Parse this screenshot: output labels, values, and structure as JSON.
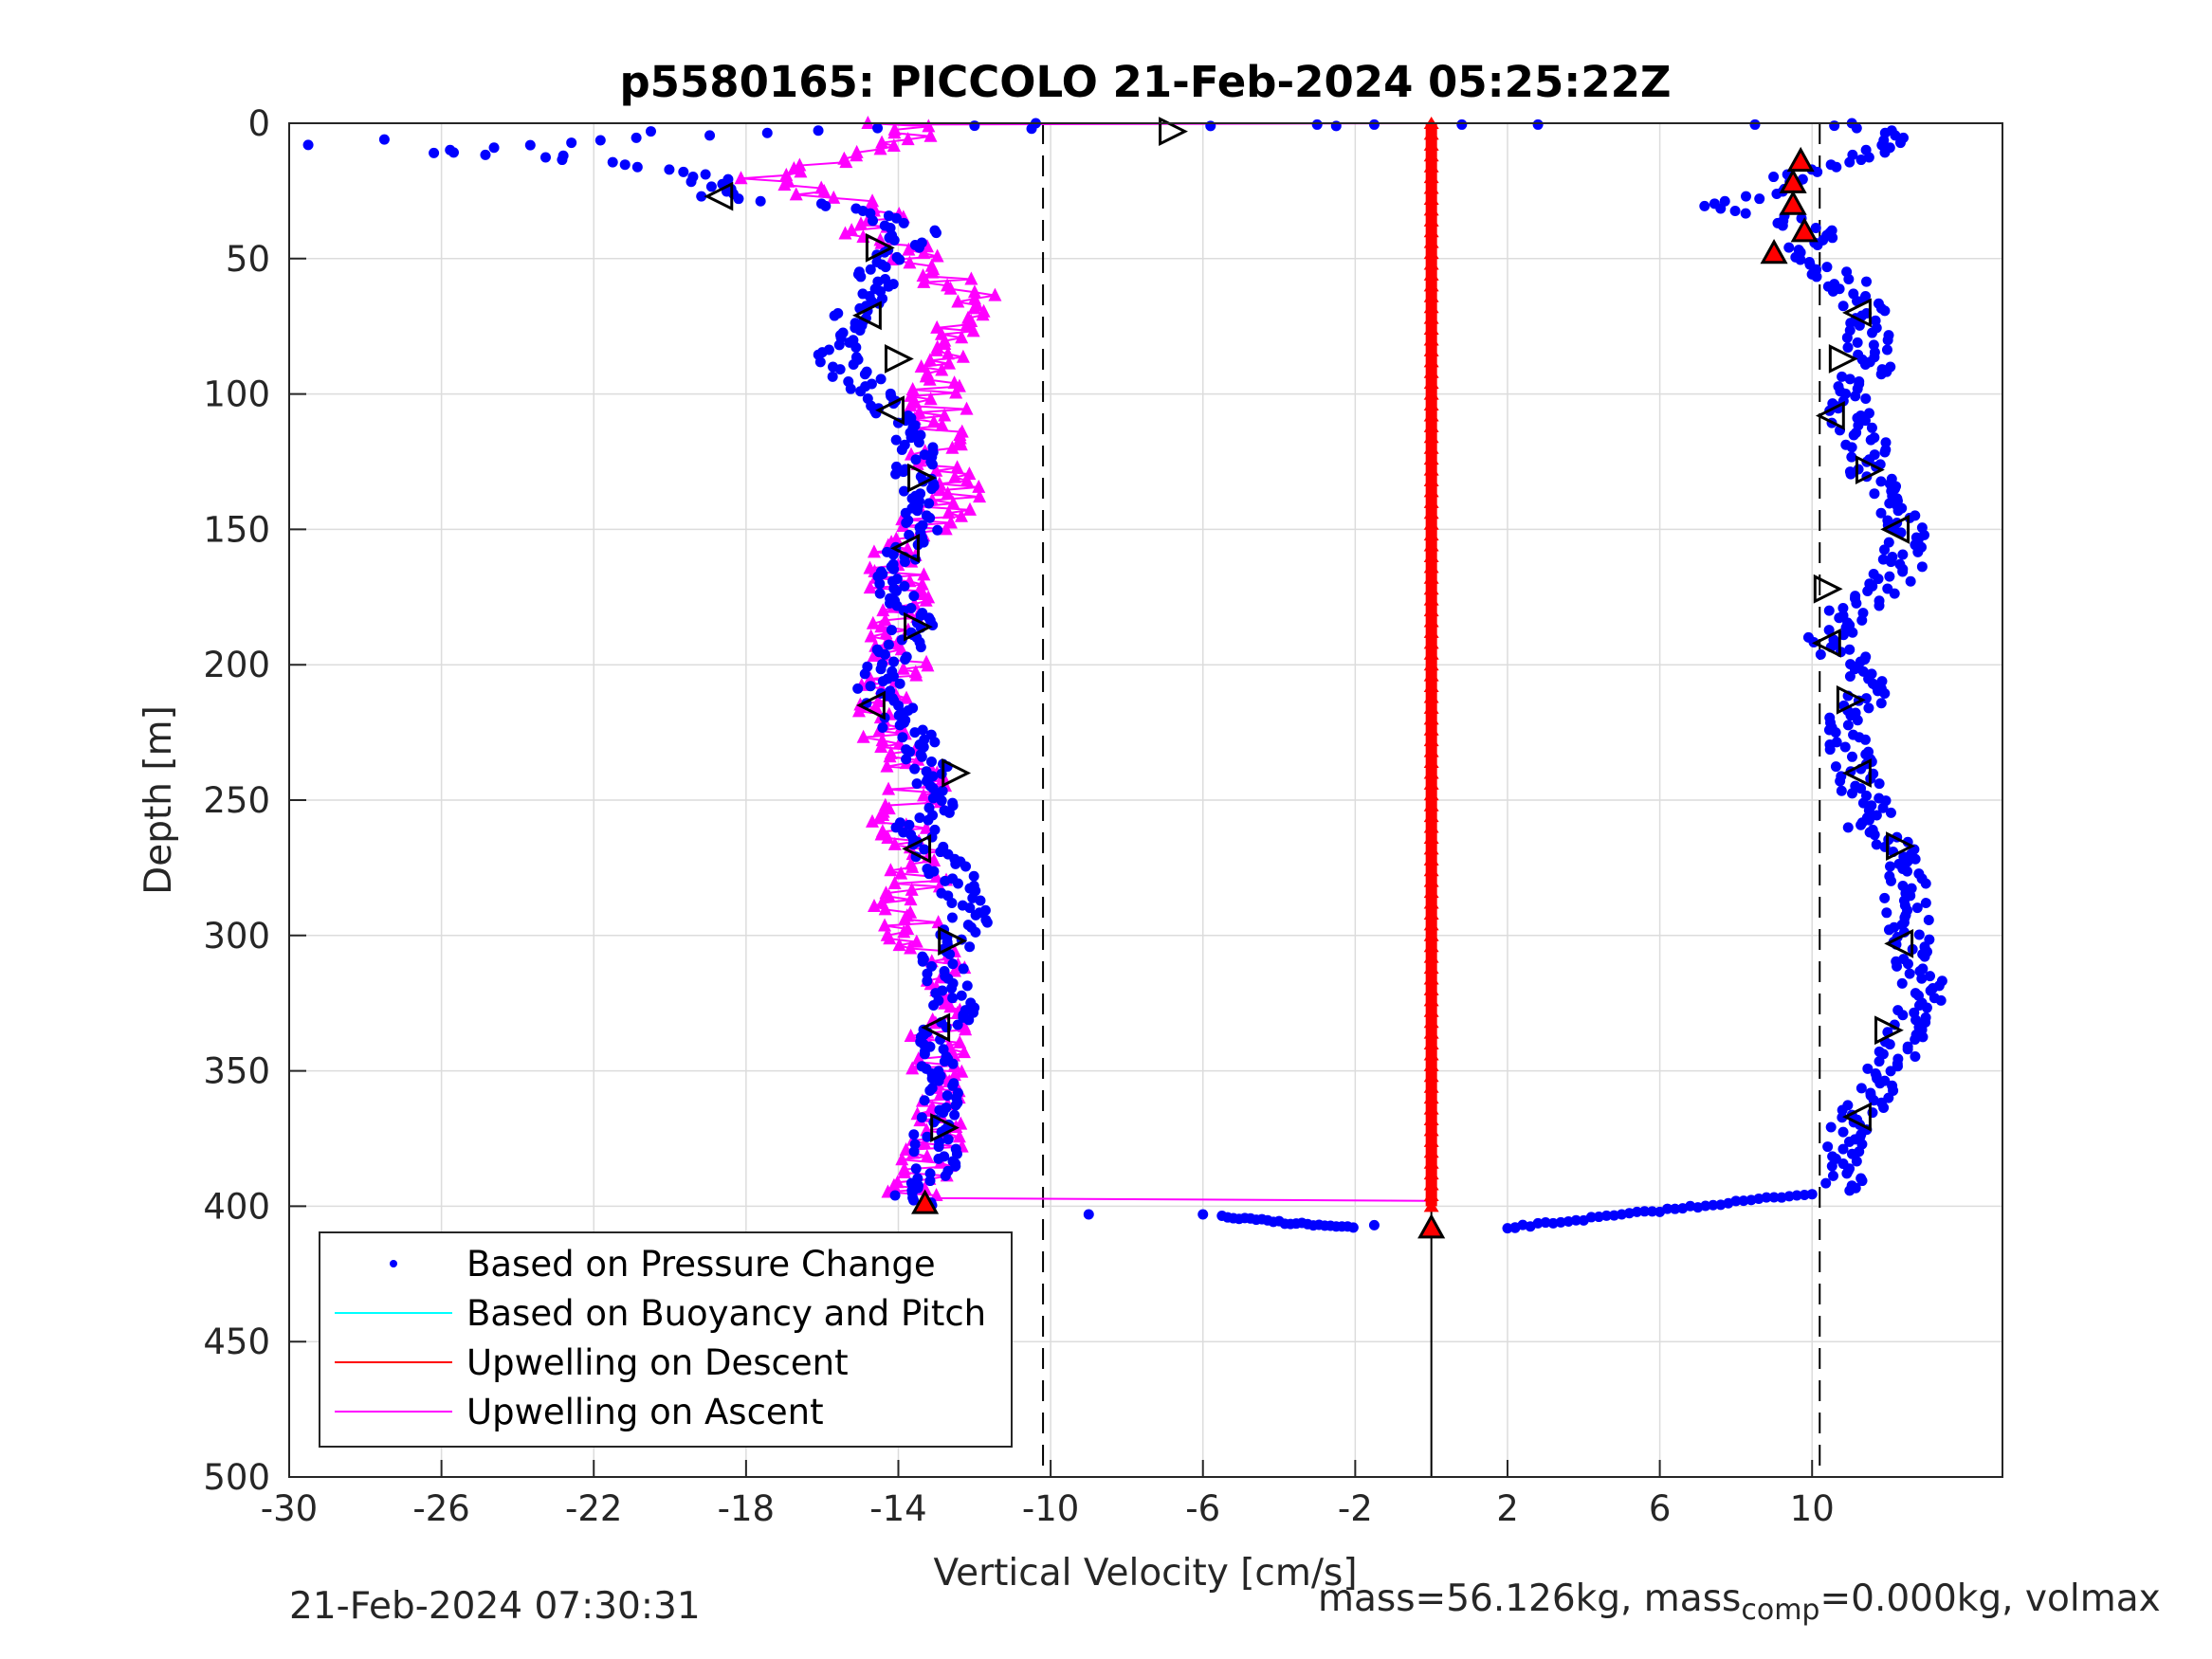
{
  "chart_data": {
    "type": "scatter",
    "title": "p5580165: PICCOLO 21-Feb-2024 05:25:22Z",
    "xlabel": "Vertical Velocity [cm/s]",
    "ylabel": "Depth [m]",
    "xlim": [
      -30,
      15
    ],
    "ylim": [
      0,
      500
    ],
    "y_reversed": true,
    "xticks": [
      -30,
      -26,
      -22,
      -18,
      -14,
      -10,
      -6,
      -2,
      2,
      6,
      10
    ],
    "yticks": [
      0,
      50,
      100,
      150,
      200,
      250,
      300,
      350,
      400,
      450,
      500
    ],
    "grid": true,
    "legend_location": "lower-left",
    "reference_lines": {
      "dashed_x": [
        -10.2,
        10.2
      ],
      "solid_x": [
        0
      ]
    },
    "series": [
      {
        "name": "Based on Pressure Change",
        "color": "#0000ff",
        "marker": "dot",
        "descent": {
          "depth": [
            0,
            5,
            10,
            15,
            20,
            25,
            28,
            30,
            35,
            40,
            45,
            50,
            55,
            60,
            65,
            70,
            75,
            80,
            85,
            90,
            95,
            100,
            105,
            110,
            115,
            120,
            125,
            130,
            135,
            140,
            145,
            150,
            155,
            160,
            165,
            170,
            175,
            180,
            185,
            190,
            195,
            200,
            210,
            220,
            230,
            240,
            250,
            260,
            270,
            280,
            290,
            300,
            310,
            320,
            330,
            340,
            350,
            360,
            370,
            380,
            390,
            395,
            400
          ],
          "velocity": [
            -10.5,
            -20.5,
            -26,
            -21,
            -19,
            -18.7,
            -18.7,
            -16,
            -14.5,
            -13.5,
            -14,
            -14,
            -14.5,
            -14.5,
            -15,
            -15.2,
            -15,
            -15,
            -15.5,
            -15.5,
            -15,
            -14.5,
            -14.5,
            -14,
            -14,
            -13.5,
            -13.5,
            -13.5,
            -13.5,
            -13.5,
            -13.5,
            -13.5,
            -13.5,
            -14,
            -14,
            -14,
            -14,
            -13.5,
            -13.5,
            -14,
            -14,
            -14.5,
            -14.5,
            -14,
            -13.5,
            -13,
            -13,
            -13.5,
            -13,
            -12.5,
            -12,
            -12.5,
            -13,
            -12.5,
            -12.5,
            -13,
            -13,
            -13,
            -13,
            -13,
            -13,
            -13.5,
            -13.5
          ]
        },
        "ascent": {
          "depth": [
            405,
            405,
            405,
            405,
            400,
            395,
            390,
            380,
            370,
            360,
            350,
            340,
            330,
            320,
            310,
            300,
            290,
            280,
            270,
            260,
            250,
            240,
            230,
            220,
            210,
            200,
            190,
            180,
            170,
            160,
            150,
            140,
            130,
            120,
            110,
            100,
            90,
            80,
            70,
            60,
            55,
            50,
            45,
            40,
            35,
            30,
            25,
            20,
            15,
            10,
            5,
            0
          ],
          "velocity": [
            -5,
            -3,
            2,
            5,
            9,
            10.5,
            10.8,
            10.8,
            11,
            11.5,
            12,
            12.5,
            12.5,
            13,
            12.5,
            12.5,
            12.5,
            12.5,
            12.5,
            11.5,
            11.5,
            11,
            11,
            11,
            11.5,
            11,
            10.5,
            11,
            12,
            12.5,
            12.5,
            12,
            11.5,
            11.5,
            11,
            11,
            11.5,
            11.5,
            11.5,
            11,
            10.5,
            9.5,
            10,
            10,
            9.5,
            7.5,
            9,
            9.5,
            11,
            12,
            12,
            11
          ]
        }
      },
      {
        "name": "Based on Buoyancy and Pitch",
        "color": "#00ffff",
        "marker": "line",
        "depth": [],
        "velocity": []
      },
      {
        "name": "Upwelling on Descent",
        "color": "#ff0000",
        "marker": "triangle",
        "depth": [
          0,
          400
        ],
        "velocity": [
          0,
          0
        ]
      },
      {
        "name": "Upwelling on Ascent",
        "color": "#ff00ff",
        "marker": "triangle",
        "depth": [
          0,
          5,
          10,
          15,
          20,
          25,
          30,
          35,
          40,
          45,
          50,
          55,
          60,
          65,
          70,
          75,
          80,
          90,
          100,
          110,
          120,
          130,
          140,
          150,
          160,
          170,
          180,
          190,
          200,
          210,
          220,
          230,
          240,
          250,
          260,
          270,
          280,
          290,
          300,
          310,
          320,
          330,
          340,
          350,
          360,
          370,
          380,
          390,
          397
        ],
        "velocity": [
          -14,
          -13.5,
          -15,
          -16,
          -17.5,
          -16.5,
          -15,
          -14.5,
          -15,
          -14,
          -13.5,
          -13,
          -12.5,
          -12,
          -11.5,
          -12.5,
          -13,
          -13,
          -13,
          -13,
          -13,
          -12.5,
          -12.5,
          -13.5,
          -14,
          -14,
          -14,
          -14.5,
          -14,
          -14.5,
          -14.5,
          -14,
          -13.5,
          -13.5,
          -14,
          -13.5,
          -13.5,
          -14,
          -13.5,
          -13,
          -13,
          -13,
          -13,
          -13,
          -13,
          -13,
          -13,
          -13.5,
          -13.5
        ]
      }
    ],
    "stall_markers": [
      {
        "velocity": -6.8,
        "depth": 3,
        "dir": "right"
      },
      {
        "velocity": -18.7,
        "depth": 27,
        "dir": "left"
      },
      {
        "velocity": -14.5,
        "depth": 46,
        "dir": "right"
      },
      {
        "velocity": -14.8,
        "depth": 71,
        "dir": "left"
      },
      {
        "velocity": -14,
        "depth": 87,
        "dir": "right"
      },
      {
        "velocity": -14.2,
        "depth": 106,
        "dir": "left"
      },
      {
        "velocity": -13.4,
        "depth": 131,
        "dir": "right"
      },
      {
        "velocity": -13.8,
        "depth": 157,
        "dir": "left"
      },
      {
        "velocity": -13.5,
        "depth": 186,
        "dir": "right"
      },
      {
        "velocity": -14.7,
        "depth": 215,
        "dir": "left"
      },
      {
        "velocity": -12.5,
        "depth": 240,
        "dir": "right"
      },
      {
        "velocity": -13.5,
        "depth": 268,
        "dir": "left"
      },
      {
        "velocity": -12.6,
        "depth": 302,
        "dir": "right"
      },
      {
        "velocity": -13,
        "depth": 334,
        "dir": "left"
      },
      {
        "velocity": -12.8,
        "depth": 371,
        "dir": "right"
      },
      {
        "velocity": 11.2,
        "depth": 70,
        "dir": "left"
      },
      {
        "velocity": 10.8,
        "depth": 87,
        "dir": "right"
      },
      {
        "velocity": 10.5,
        "depth": 108,
        "dir": "left"
      },
      {
        "velocity": 11.5,
        "depth": 128,
        "dir": "right"
      },
      {
        "velocity": 12.2,
        "depth": 150,
        "dir": "left"
      },
      {
        "velocity": 10.4,
        "depth": 172,
        "dir": "right"
      },
      {
        "velocity": 10.4,
        "depth": 192,
        "dir": "left"
      },
      {
        "velocity": 11,
        "depth": 213,
        "dir": "right"
      },
      {
        "velocity": 11.2,
        "depth": 240,
        "dir": "left"
      },
      {
        "velocity": 12.3,
        "depth": 267,
        "dir": "right"
      },
      {
        "velocity": 12.3,
        "depth": 303,
        "dir": "left"
      },
      {
        "velocity": 12,
        "depth": 335,
        "dir": "right"
      },
      {
        "velocity": 11.2,
        "depth": 367,
        "dir": "left"
      }
    ],
    "red_markers": [
      {
        "velocity": 9.7,
        "depth": 14
      },
      {
        "velocity": 9.5,
        "depth": 22
      },
      {
        "velocity": 9.5,
        "depth": 30
      },
      {
        "velocity": 9.8,
        "depth": 40
      },
      {
        "velocity": 9,
        "depth": 48
      },
      {
        "velocity": -13.3,
        "depth": 399
      },
      {
        "velocity": 0,
        "depth": 408
      }
    ]
  },
  "footer": {
    "timestamp": "21-Feb-2024 07:30:31",
    "mass_text": "mass=56.126kg, mass",
    "mass_sub": "comp",
    "mass_tail": "=0.000kg, volmax"
  }
}
